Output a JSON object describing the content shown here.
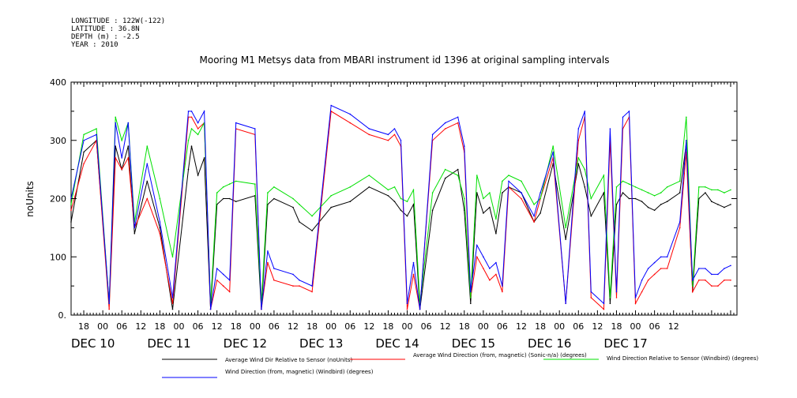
{
  "header": {
    "longitude": "LONGITUDE : 122W(-122)",
    "latitude": "LATITUDE : 36.8N",
    "depth": "DEPTH (m) : -2.5",
    "year": "YEAR : 2010"
  },
  "chart_data": {
    "type": "line",
    "title": "Mooring M1 Metsys data from MBARI instrument id 1396 at original sampling intervals",
    "ylabel": "noUnits",
    "xlabel": "",
    "ylim": [
      0,
      400
    ],
    "yticks": [
      0,
      100,
      200,
      300,
      400
    ],
    "ytick_labels": [
      "0.",
      "100",
      "200",
      "300",
      "400"
    ],
    "xlim_hours": [
      -4,
      206
    ],
    "hour_ticks": [
      "18",
      "00",
      "06",
      "12",
      "18",
      "00",
      "06",
      "12",
      "18",
      "00",
      "06",
      "12",
      "18",
      "00",
      "06",
      "12",
      "18",
      "00",
      "06",
      "12",
      "18",
      "00",
      "06",
      "12",
      "18",
      "00",
      "06",
      "12",
      "18",
      "00",
      "06",
      "12"
    ],
    "day_labels": [
      "DEC 10",
      "DEC 11",
      "DEC 12",
      "DEC 13",
      "DEC 14",
      "DEC 15",
      "DEC 16",
      "DEC 17"
    ],
    "grid": false,
    "legend_position": "bottom",
    "series": [
      {
        "name": "Average Wind Dir Relative to Sensor (noUnits)",
        "color": "#000000",
        "x": [
          -4,
          0,
          4,
          8,
          10,
          12,
          14,
          16,
          20,
          24,
          28,
          33,
          34,
          36,
          38,
          40,
          42,
          44,
          46,
          48,
          54,
          56,
          58,
          60,
          66,
          68,
          72,
          78,
          84,
          90,
          96,
          98,
          100,
          102,
          104,
          106,
          110,
          114,
          118,
          120,
          122,
          124,
          126,
          128,
          130,
          132,
          134,
          138,
          142,
          144,
          148,
          152,
          156,
          158,
          160,
          164,
          166,
          168,
          170,
          172,
          174,
          176,
          178,
          180,
          182,
          184,
          188,
          190,
          192,
          194,
          196,
          198,
          200,
          202,
          204
        ],
        "y": [
          160,
          280,
          300,
          20,
          290,
          250,
          290,
          140,
          230,
          150,
          10,
          250,
          290,
          240,
          270,
          10,
          190,
          200,
          200,
          195,
          205,
          10,
          190,
          200,
          185,
          160,
          145,
          185,
          195,
          220,
          205,
          195,
          180,
          170,
          190,
          10,
          180,
          235,
          250,
          180,
          20,
          210,
          175,
          185,
          140,
          210,
          220,
          210,
          160,
          175,
          260,
          130,
          260,
          220,
          170,
          210,
          20,
          190,
          210,
          200,
          200,
          195,
          185,
          180,
          190,
          195,
          210,
          295,
          40,
          200,
          210,
          195,
          190,
          185,
          190
        ]
      },
      {
        "name": "Average Wind Direction (from, magnetic) (Sonic-n/a) (degrees)",
        "color": "#ff0000",
        "x": [
          -4,
          0,
          4,
          8,
          10,
          12,
          14,
          16,
          20,
          24,
          28,
          33,
          34,
          36,
          38,
          40,
          42,
          44,
          46,
          48,
          54,
          56,
          58,
          60,
          66,
          68,
          72,
          78,
          84,
          90,
          96,
          98,
          100,
          102,
          104,
          106,
          110,
          114,
          118,
          120,
          122,
          124,
          126,
          128,
          130,
          132,
          134,
          138,
          142,
          144,
          148,
          152,
          156,
          158,
          160,
          164,
          166,
          168,
          170,
          172,
          174,
          176,
          178,
          180,
          182,
          184,
          188,
          190,
          192,
          194,
          196,
          198,
          200,
          202,
          204
        ],
        "y": [
          180,
          260,
          300,
          10,
          270,
          250,
          270,
          150,
          200,
          140,
          20,
          340,
          340,
          320,
          330,
          10,
          60,
          50,
          40,
          320,
          310,
          10,
          90,
          60,
          50,
          50,
          40,
          350,
          330,
          310,
          300,
          310,
          290,
          10,
          70,
          10,
          300,
          320,
          330,
          280,
          30,
          100,
          80,
          60,
          70,
          40,
          220,
          200,
          160,
          200,
          270,
          20,
          300,
          340,
          30,
          10,
          300,
          30,
          320,
          340,
          20,
          40,
          60,
          70,
          80,
          80,
          150,
          280,
          40,
          60,
          60,
          50,
          50,
          60,
          60
        ]
      },
      {
        "name": "Wind Direction Relative to Sensor (Windbird) (degrees)",
        "color": "#00e000",
        "x": [
          -4,
          0,
          4,
          8,
          10,
          12,
          14,
          16,
          20,
          24,
          28,
          33,
          34,
          36,
          38,
          40,
          42,
          44,
          46,
          48,
          54,
          56,
          58,
          60,
          66,
          68,
          72,
          78,
          84,
          90,
          96,
          98,
          100,
          102,
          104,
          106,
          110,
          114,
          118,
          120,
          122,
          124,
          126,
          128,
          130,
          132,
          134,
          138,
          142,
          144,
          148,
          152,
          156,
          158,
          160,
          164,
          166,
          168,
          170,
          172,
          174,
          176,
          178,
          180,
          182,
          184,
          188,
          190,
          192,
          194,
          196,
          198,
          200,
          202,
          204
        ],
        "y": [
          190,
          310,
          320,
          20,
          340,
          300,
          330,
          160,
          290,
          200,
          100,
          300,
          320,
          310,
          330,
          20,
          210,
          220,
          225,
          230,
          225,
          20,
          210,
          220,
          200,
          190,
          170,
          205,
          220,
          240,
          215,
          220,
          200,
          195,
          215,
          20,
          210,
          250,
          240,
          200,
          30,
          240,
          200,
          210,
          165,
          230,
          240,
          230,
          190,
          200,
          290,
          150,
          270,
          250,
          200,
          240,
          30,
          220,
          230,
          225,
          220,
          215,
          210,
          205,
          210,
          220,
          230,
          340,
          50,
          220,
          220,
          215,
          215,
          210,
          215
        ]
      },
      {
        "name": "Wind Direction (from, magnetic) (Windbird) (degrees)",
        "color": "#0000ff",
        "x": [
          -4,
          0,
          4,
          8,
          10,
          12,
          14,
          16,
          20,
          24,
          28,
          33,
          34,
          36,
          38,
          40,
          42,
          44,
          46,
          48,
          54,
          56,
          58,
          60,
          66,
          68,
          72,
          78,
          84,
          90,
          96,
          98,
          100,
          102,
          104,
          106,
          110,
          114,
          118,
          120,
          122,
          124,
          126,
          128,
          130,
          132,
          134,
          138,
          142,
          144,
          148,
          152,
          156,
          158,
          160,
          164,
          166,
          168,
          170,
          172,
          174,
          176,
          178,
          180,
          182,
          184,
          188,
          190,
          192,
          194,
          196,
          198,
          200,
          202,
          204
        ],
        "y": [
          200,
          300,
          310,
          20,
          330,
          270,
          330,
          150,
          260,
          160,
          30,
          350,
          350,
          330,
          350,
          10,
          80,
          70,
          60,
          330,
          320,
          10,
          110,
          80,
          70,
          60,
          50,
          360,
          345,
          320,
          310,
          320,
          300,
          20,
          90,
          10,
          310,
          330,
          340,
          290,
          40,
          120,
          100,
          80,
          90,
          50,
          230,
          210,
          170,
          210,
          280,
          20,
          320,
          350,
          40,
          20,
          320,
          40,
          340,
          350,
          30,
          60,
          80,
          90,
          100,
          100,
          160,
          300,
          60,
          80,
          80,
          70,
          70,
          80,
          85
        ]
      }
    ]
  }
}
